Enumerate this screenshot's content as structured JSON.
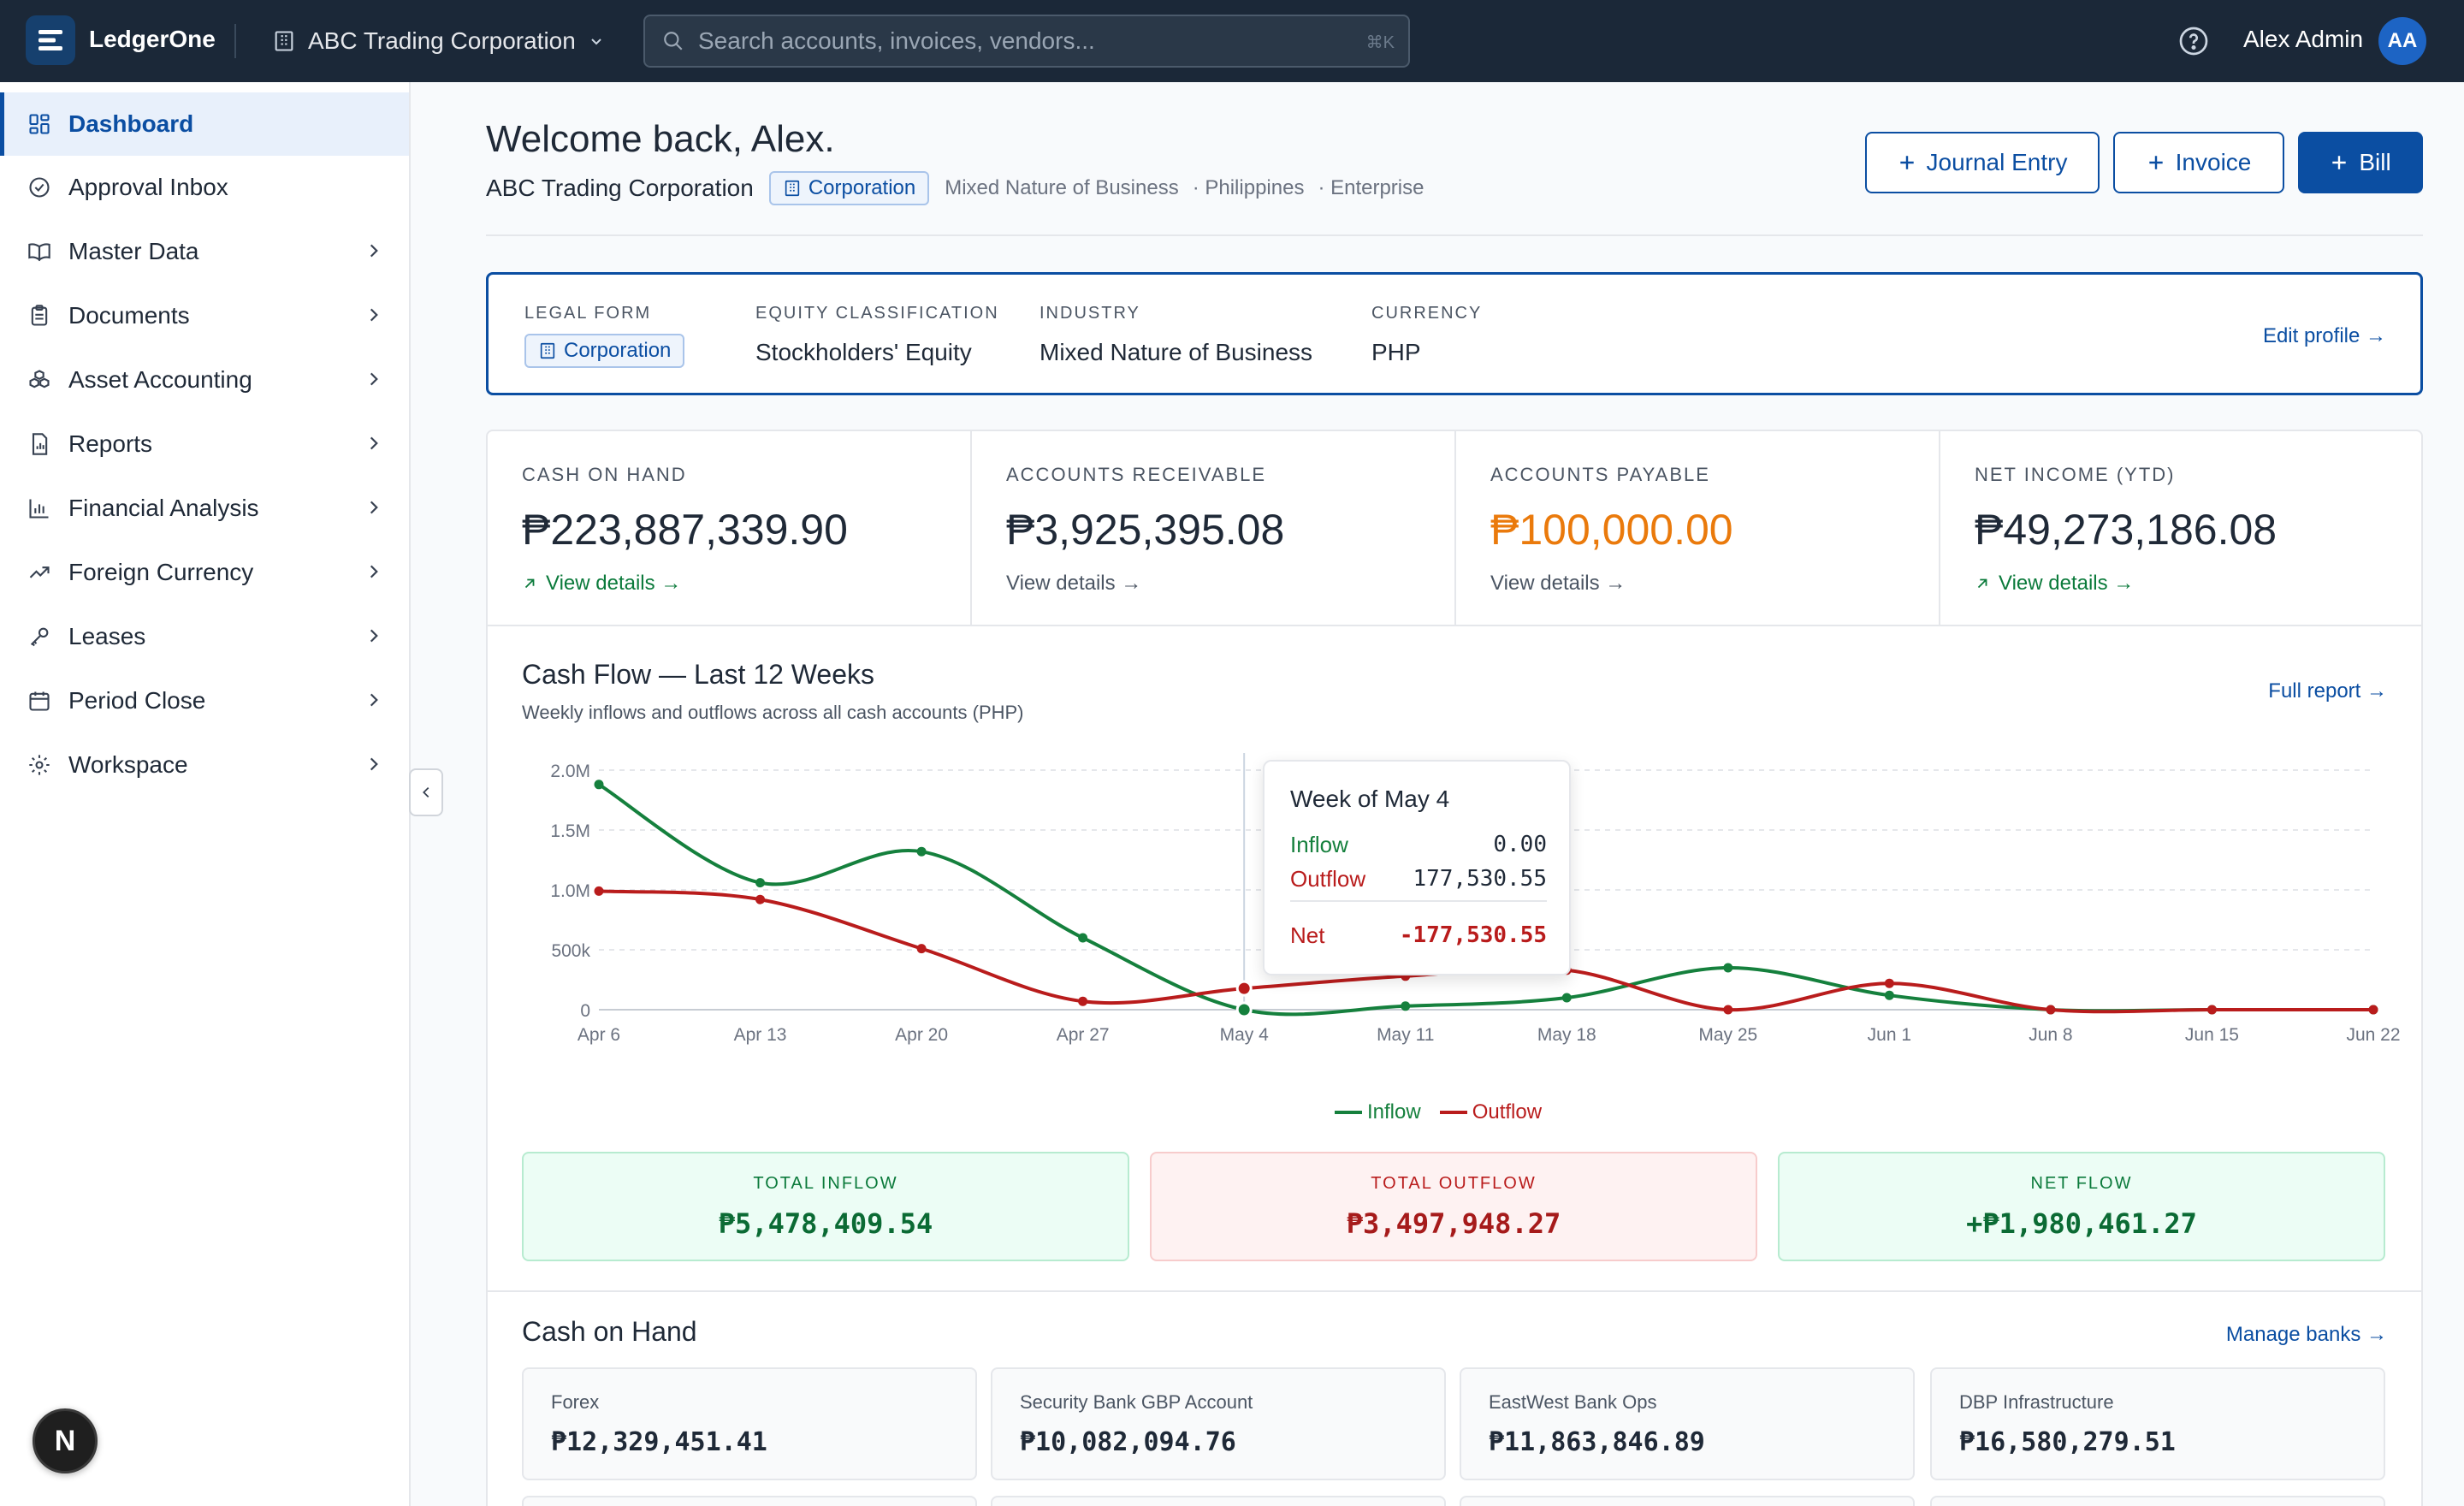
{
  "app": {
    "name": "LedgerOne"
  },
  "org": {
    "name": "ABC Trading Corporation"
  },
  "search": {
    "placeholder": "Search accounts, invoices, vendors...",
    "shortcut": "⌘K"
  },
  "user": {
    "name": "Alex Admin",
    "initials": "AA"
  },
  "sidebar": {
    "items": [
      {
        "label": "Dashboard",
        "icon": "grid-icon",
        "active": true
      },
      {
        "label": "Approval Inbox",
        "icon": "check-circle-icon"
      },
      {
        "label": "Master Data",
        "icon": "book-icon"
      },
      {
        "label": "Documents",
        "icon": "clipboard-icon"
      },
      {
        "label": "Asset Accounting",
        "icon": "boxes-icon"
      },
      {
        "label": "Reports",
        "icon": "report-icon"
      },
      {
        "label": "Financial Analysis",
        "icon": "bar-chart-icon"
      },
      {
        "label": "Foreign Currency",
        "icon": "trend-icon"
      },
      {
        "label": "Leases",
        "icon": "key-icon"
      },
      {
        "label": "Period Close",
        "icon": "calendar-icon"
      },
      {
        "label": "Workspace",
        "icon": "gear-icon"
      }
    ]
  },
  "header": {
    "welcome": "Welcome back, Alex.",
    "org_name": "ABC Trading Corporation",
    "legal_form_chip": "Corporation",
    "meta1": "Mixed Nature of Business",
    "meta2": "· Philippines",
    "meta3": "· Enterprise",
    "buttons": {
      "journal": "Journal Entry",
      "invoice": "Invoice",
      "bill": "Bill"
    }
  },
  "profile": {
    "legal_form_label": "LEGAL FORM",
    "legal_form": "Corporation",
    "equity_label": "EQUITY CLASSIFICATION",
    "equity": "Stockholders' Equity",
    "industry_label": "INDUSTRY",
    "industry": "Mixed Nature of Business",
    "currency_label": "CURRENCY",
    "currency": "PHP",
    "edit": "Edit profile →"
  },
  "kpis": [
    {
      "label": "CASH ON HAND",
      "value": "₱223,887,339.90",
      "link": "View details →"
    },
    {
      "label": "ACCOUNTS RECEIVABLE",
      "value": "₱3,925,395.08",
      "link": "View details →"
    },
    {
      "label": "ACCOUNTS PAYABLE",
      "value": "₱100,000.00",
      "link": "View details →"
    },
    {
      "label": "NET INCOME (YTD)",
      "value": "₱49,273,186.08",
      "link": "View details →"
    }
  ],
  "cashflow": {
    "title": "Cash Flow — Last 12 Weeks",
    "subtitle": "Weekly inflows and outflows across all cash accounts (PHP)",
    "full_report": "Full report →",
    "tooltip": {
      "title": "Week of May 4",
      "inflow_label": "Inflow",
      "inflow": "0.00",
      "outflow_label": "Outflow",
      "outflow": "177,530.55",
      "net_label": "Net",
      "net": "-177,530.55"
    },
    "totals": {
      "inflow_label": "TOTAL INFLOW",
      "inflow": "₱5,478,409.54",
      "outflow_label": "TOTAL OUTFLOW",
      "outflow": "₱3,497,948.27",
      "net_label": "NET FLOW",
      "net": "+₱1,980,461.27"
    }
  },
  "chart_data": {
    "type": "line",
    "title": "Cash Flow — Last 12 Weeks",
    "x": [
      "Apr 6",
      "Apr 13",
      "Apr 20",
      "Apr 27",
      "May 4",
      "May 11",
      "May 18",
      "May 25",
      "Jun 1",
      "Jun 8",
      "Jun 15",
      "Jun 22"
    ],
    "y_ticks": [
      "0",
      "500k",
      "1.0M",
      "1.5M",
      "2.0M"
    ],
    "ylim": [
      0,
      2000000
    ],
    "series": [
      {
        "name": "Inflow",
        "color": "#15803d",
        "values": [
          1880000,
          1060000,
          1320000,
          600000,
          0,
          30000,
          100000,
          350000,
          120000,
          0,
          0,
          0
        ]
      },
      {
        "name": "Outflow",
        "color": "#b91c1c",
        "values": [
          990000,
          920000,
          510000,
          70000,
          177530.55,
          280000,
          330000,
          0,
          220000,
          0,
          0,
          0
        ]
      }
    ],
    "grid": true,
    "legend": "bottom-center"
  },
  "cash_on_hand": {
    "title": "Cash on Hand",
    "manage": "Manage banks →",
    "banks": [
      {
        "name": "Forex",
        "amount": "₱12,329,451.41"
      },
      {
        "name": "Security Bank GBP Account",
        "amount": "₱10,082,094.76"
      },
      {
        "name": "EastWest Bank Ops",
        "amount": "₱11,863,846.89"
      },
      {
        "name": "DBP Infrastructure",
        "amount": "₱16,580,279.51"
      }
    ]
  },
  "badge": {
    "letter": "N"
  }
}
